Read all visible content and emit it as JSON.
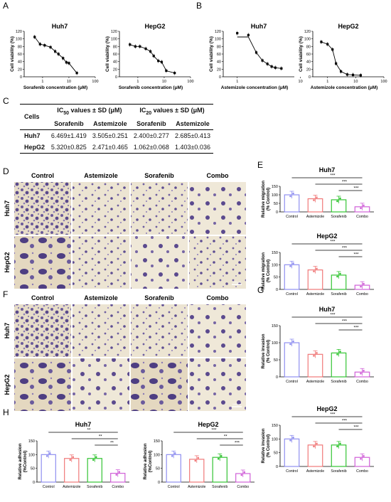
{
  "panels": {
    "A": {
      "letter": "A",
      "plots": [
        {
          "title": "Huh7",
          "xlabel": "Sorafenib concentration (μM)",
          "ylabel": "Cell viability (%)",
          "xticks": [
            "1",
            "10",
            "100"
          ],
          "yticks": [
            "0",
            "20",
            "40",
            "60",
            "80",
            "100",
            "120"
          ],
          "points": [
            [
              0.5,
              105
            ],
            [
              0.8,
              86
            ],
            [
              1.2,
              83
            ],
            [
              2,
              78
            ],
            [
              3,
              67
            ],
            [
              4,
              60
            ],
            [
              6,
              49
            ],
            [
              8,
              38
            ],
            [
              10,
              36
            ],
            [
              20,
              10
            ]
          ]
        },
        {
          "title": "HepG2",
          "xlabel": "Sorafenib concentration (μM)",
          "ylabel": "Cell viability (%)",
          "xticks": [
            "1",
            "10",
            "100"
          ],
          "yticks": [
            "0",
            "20",
            "40",
            "60",
            "80",
            "100",
            "120"
          ],
          "points": [
            [
              0.5,
              85
            ],
            [
              0.8,
              80
            ],
            [
              1.2,
              80
            ],
            [
              2,
              74
            ],
            [
              3,
              67
            ],
            [
              4,
              55
            ],
            [
              6,
              42
            ],
            [
              8,
              39
            ],
            [
              12,
              16
            ],
            [
              25,
              10
            ]
          ]
        }
      ]
    },
    "B": {
      "letter": "B",
      "plots": [
        {
          "title": "Huh7",
          "xlabel": "Astemizole concentration (μM)",
          "ylabel": "Cell viability (%)",
          "xticks": [
            "1",
            "10"
          ],
          "yticks": [
            "0",
            "20",
            "40",
            "60",
            "80",
            "100",
            "120"
          ],
          "points": [
            [
              1,
              115
            ],
            [
              1.5,
              110
            ],
            [
              2,
              64
            ],
            [
              2.5,
              43
            ],
            [
              3,
              34
            ],
            [
              3.5,
              27
            ],
            [
              4,
              24
            ],
            [
              5,
              22
            ]
          ]
        },
        {
          "title": "HepG2",
          "xlabel": "Astemizole concentration (μM)",
          "ylabel": "Cell viability (%)",
          "xticks": [
            "1",
            "10",
            "100"
          ],
          "yticks": [
            "0",
            "20",
            "40",
            "60",
            "80",
            "100",
            "120"
          ],
          "points": [
            [
              0.6,
              92
            ],
            [
              1,
              86
            ],
            [
              1.5,
              72
            ],
            [
              2,
              35
            ],
            [
              3,
              14
            ],
            [
              5,
              6
            ],
            [
              8,
              5
            ],
            [
              15,
              4
            ]
          ]
        }
      ]
    }
  },
  "tableC": {
    "letter": "C",
    "head1": [
      "Cells",
      "IC50 values ± SD (μM)",
      "IC20 values ± SD (μM)"
    ],
    "head2": [
      "Sorafenib",
      "Astemizole",
      "Sorafenib",
      "Astemizole"
    ],
    "rows": [
      {
        "cell": "Huh7",
        "vals": [
          "6.469±1.419",
          "3.505±0.251",
          "2.400±0.277",
          "2.685±0.413"
        ]
      },
      {
        "cell": "HepG2",
        "vals": [
          "5.320±0.825",
          "2.471±0.465",
          "1.062±0.068",
          "1.403±0.036"
        ]
      }
    ]
  },
  "micro": {
    "D": {
      "letter": "D",
      "cols": [
        "Control",
        "Astemizole",
        "Sorafenib",
        "Combo"
      ],
      "rows": [
        "Huh7",
        "HepG2"
      ],
      "scale": "100μm"
    },
    "F": {
      "letter": "F",
      "cols": [
        "Control",
        "Astemizole",
        "Sorafenib",
        "Combo"
      ],
      "rows": [
        "Huh7",
        "HepG2"
      ],
      "scale": "100μm"
    }
  },
  "bars": {
    "E": {
      "letter": "E",
      "charts": [
        {
          "title": "Huh7",
          "ylabel": "Relative migration\n(% Control)",
          "yticks": [
            "0",
            "50",
            "100",
            "150"
          ],
          "categories": [
            "Control",
            "Astemizole",
            "Sorafenib",
            "Combo"
          ],
          "values": [
            100,
            77,
            71,
            30
          ],
          "sig": [
            "***",
            "***",
            "***"
          ]
        },
        {
          "title": "HepG2",
          "ylabel": "Relative migration\n(% Control)",
          "yticks": [
            "0",
            "50",
            "100",
            "150"
          ],
          "categories": [
            "Control",
            "Astemizole",
            "Sorafenib",
            "Combo"
          ],
          "values": [
            100,
            79,
            58,
            17
          ],
          "sig": [
            "***",
            "***",
            "***"
          ]
        }
      ]
    },
    "G": {
      "letter": "G",
      "charts": [
        {
          "title": "Huh7",
          "ylabel": "Relative invasion\n(% Control)",
          "yticks": [
            "0",
            "50",
            "100",
            "150"
          ],
          "categories": [
            "Control",
            "Astemizole",
            "Sorafenib",
            "Combo"
          ],
          "values": [
            100,
            66,
            70,
            14
          ],
          "sig": [
            "***",
            "***",
            "***"
          ]
        },
        {
          "title": "HepG2",
          "ylabel": "Relative invasion\n(% Control)",
          "yticks": [
            "0",
            "50",
            "100",
            "150"
          ],
          "categories": [
            "Control",
            "Astemizole",
            "Sorafenib",
            "Combo"
          ],
          "values": [
            100,
            78,
            78,
            33
          ],
          "sig": [
            "***",
            "***",
            "***"
          ]
        }
      ]
    },
    "H": {
      "letter": "H",
      "charts": [
        {
          "title": "Huh7",
          "ylabel": "Relative adhesion\n(%Control)",
          "yticks": [
            "0",
            "50",
            "100",
            "150"
          ],
          "categories": [
            "Control",
            "Astemizole",
            "Sorafenib",
            "Combo"
          ],
          "values": [
            100,
            86,
            86,
            32
          ],
          "sig": [
            "**",
            "**",
            "**"
          ]
        },
        {
          "title": "HepG2",
          "ylabel": "Relative adhesion\n(%Control)",
          "yticks": [
            "0",
            "50",
            "100",
            "150"
          ],
          "categories": [
            "Control",
            "Astemizole",
            "Sorafenib",
            "Combo"
          ],
          "values": [
            100,
            83,
            90,
            31
          ],
          "sig": [
            "***",
            "**",
            "***"
          ]
        }
      ]
    }
  },
  "colors": {
    "control": "#8f8ff0",
    "astemizole": "#f07878",
    "sorafenib": "#33c433",
    "combo": "#d060d8"
  },
  "chart_data": [
    {
      "type": "scatter",
      "title": "Huh7",
      "xlabel": "Sorafenib concentration (μM)",
      "ylabel": "Cell viability (%)",
      "x": [
        0.5,
        0.8,
        1.2,
        2,
        3,
        4,
        6,
        8,
        10,
        20
      ],
      "y": [
        105,
        86,
        83,
        78,
        67,
        60,
        49,
        38,
        36,
        10
      ],
      "ylim": [
        0,
        120
      ]
    },
    {
      "type": "scatter",
      "title": "HepG2",
      "xlabel": "Sorafenib concentration (μM)",
      "ylabel": "Cell viability (%)",
      "x": [
        0.5,
        0.8,
        1.2,
        2,
        3,
        4,
        6,
        8,
        12,
        25
      ],
      "y": [
        85,
        80,
        80,
        74,
        67,
        55,
        42,
        39,
        16,
        10
      ],
      "ylim": [
        0,
        120
      ]
    },
    {
      "type": "scatter",
      "title": "Huh7",
      "xlabel": "Astemizole concentration (μM)",
      "ylabel": "Cell viability (%)",
      "x": [
        1,
        1.5,
        2,
        2.5,
        3,
        3.5,
        4,
        5
      ],
      "y": [
        115,
        110,
        64,
        43,
        34,
        27,
        24,
        22
      ],
      "ylim": [
        0,
        120
      ]
    },
    {
      "type": "scatter",
      "title": "HepG2",
      "xlabel": "Astemizole concentration (μM)",
      "ylabel": "Cell viability (%)",
      "x": [
        0.6,
        1,
        1.5,
        2,
        3,
        5,
        8,
        15
      ],
      "y": [
        92,
        86,
        72,
        35,
        14,
        6,
        5,
        4
      ],
      "ylim": [
        0,
        120
      ]
    },
    {
      "type": "bar",
      "title": "Huh7",
      "ylabel": "Relative migration (% Control)",
      "categories": [
        "Control",
        "Astemizole",
        "Sorafenib",
        "Combo"
      ],
      "values": [
        100,
        77,
        71,
        30
      ],
      "ylim": [
        0,
        150
      ]
    },
    {
      "type": "bar",
      "title": "HepG2",
      "ylabel": "Relative migration (% Control)",
      "categories": [
        "Control",
        "Astemizole",
        "Sorafenib",
        "Combo"
      ],
      "values": [
        100,
        79,
        58,
        17
      ],
      "ylim": [
        0,
        150
      ]
    },
    {
      "type": "bar",
      "title": "Huh7",
      "ylabel": "Relative invasion (% Control)",
      "categories": [
        "Control",
        "Astemizole",
        "Sorafenib",
        "Combo"
      ],
      "values": [
        100,
        66,
        70,
        14
      ],
      "ylim": [
        0,
        150
      ]
    },
    {
      "type": "bar",
      "title": "HepG2",
      "ylabel": "Relative invasion (% Control)",
      "categories": [
        "Control",
        "Astemizole",
        "Sorafenib",
        "Combo"
      ],
      "values": [
        100,
        78,
        78,
        33
      ],
      "ylim": [
        0,
        150
      ]
    },
    {
      "type": "bar",
      "title": "Huh7",
      "ylabel": "Relative adhesion (%Control)",
      "categories": [
        "Control",
        "Astemizole",
        "Sorafenib",
        "Combo"
      ],
      "values": [
        100,
        86,
        86,
        32
      ],
      "ylim": [
        0,
        150
      ]
    },
    {
      "type": "bar",
      "title": "HepG2",
      "ylabel": "Relative adhesion (%Control)",
      "categories": [
        "Control",
        "Astemizole",
        "Sorafenib",
        "Combo"
      ],
      "values": [
        100,
        83,
        90,
        31
      ],
      "ylim": [
        0,
        150
      ]
    }
  ]
}
